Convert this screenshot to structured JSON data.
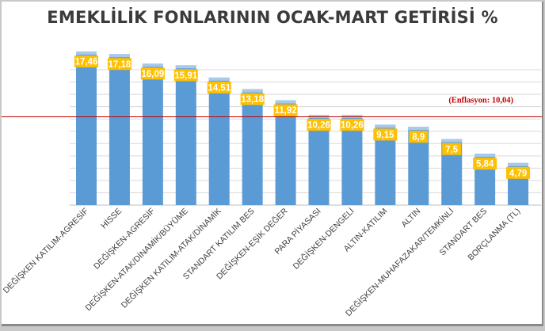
{
  "chart_data": {
    "type": "bar",
    "title": "EMEKLİLİK FONLARININ OCAK-MART GETİRİSİ %",
    "categories": [
      "DEĞİŞKEN KATILIM-AGRESİF",
      "HİSSE",
      "DEĞİŞKEN-AGRESİF",
      "DEĞİŞKEN-ATAK/DİNAMİK/BÜYÜME",
      "DEĞİŞKEN KATILIM-ATAK/DİNAMİK",
      "STANDART KATILIM BES",
      "DEĞİŞKEN-EŞİK DEĞER",
      "PARA PİYASASI",
      "DEĞİŞKEN-DENGELİ",
      "ALTIN-KATILIM",
      "ALTIN",
      "DEĞİŞKEN-MUHAFAZAKAR/TEMKİNLİ",
      "STANDART BES",
      "BORÇLANMA (TL)"
    ],
    "values": [
      17.46,
      17.18,
      16.09,
      15.91,
      14.51,
      13.18,
      11.92,
      10.26,
      10.26,
      9.15,
      8.9,
      7.5,
      5.84,
      4.79
    ],
    "value_labels": [
      "17,46",
      "17,18",
      "16,09",
      "15,91",
      "14,51",
      "13,18",
      "11,92",
      "10,26",
      "10,26",
      "9,15",
      "8,9",
      "7,5",
      "5,84",
      "4,79"
    ],
    "ylim": [
      0,
      20
    ],
    "grid": true,
    "gridline_step": 1.4,
    "reference_line": {
      "value": 10.04,
      "label": "(Enflasyon: 10,04)",
      "color": "#c00000"
    },
    "colors": {
      "bar": "#5b9bd5",
      "bar_top": "#a9c9ea",
      "label_bg": "#ffc000",
      "gridline": "#d9d9d9"
    },
    "xlabel": "",
    "ylabel": ""
  }
}
